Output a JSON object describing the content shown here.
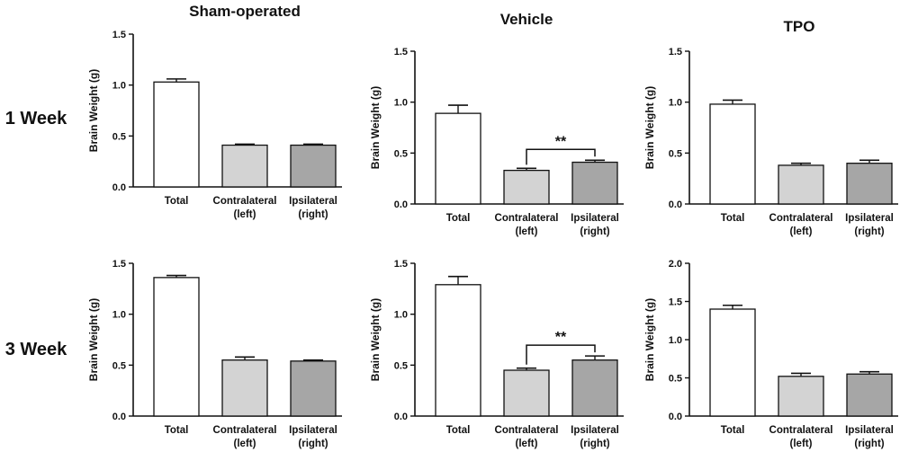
{
  "column_titles": [
    "Sham-operated",
    "Vehicle",
    "TPO"
  ],
  "row_titles": [
    "1 Week",
    "3 Week"
  ],
  "colors": {
    "total": "#ffffff",
    "contralateral": "#d3d3d3",
    "ipsilateral": "#a6a6a6",
    "stroke": "#111111"
  },
  "chart_data": [
    {
      "type": "bar",
      "group": "Sham-operated",
      "timepoint": "1 Week",
      "ylabel": "Brain Weight (g)",
      "categories": [
        [
          "Total"
        ],
        [
          "Contralateral",
          "(left)"
        ],
        [
          "Ipsilateral",
          "(right)"
        ]
      ],
      "values": [
        1.03,
        0.41,
        0.41
      ],
      "errors": [
        0.03,
        0.01,
        0.01
      ],
      "ylim": [
        0,
        1.5
      ],
      "yticks": [
        "0.0",
        "0.5",
        "1.0",
        "1.5"
      ],
      "significance": null
    },
    {
      "type": "bar",
      "group": "Vehicle",
      "timepoint": "1 Week",
      "ylabel": "Brain Weight (g)",
      "categories": [
        [
          "Total"
        ],
        [
          "Contralateral",
          "(left)"
        ],
        [
          "Ipsilateral",
          "(right)"
        ]
      ],
      "values": [
        0.89,
        0.33,
        0.41
      ],
      "errors": [
        0.08,
        0.02,
        0.02
      ],
      "ylim": [
        0,
        1.5
      ],
      "yticks": [
        "0.0",
        "0.5",
        "1.0",
        "1.5"
      ],
      "significance": {
        "from": 1,
        "to": 2,
        "label": "**"
      }
    },
    {
      "type": "bar",
      "group": "TPO",
      "timepoint": "1 Week",
      "ylabel": "Brain Weight (g)",
      "categories": [
        [
          "Total"
        ],
        [
          "Contralateral",
          "(left)"
        ],
        [
          "Ipsilateral",
          "(right)"
        ]
      ],
      "values": [
        0.98,
        0.38,
        0.4
      ],
      "errors": [
        0.04,
        0.02,
        0.03
      ],
      "ylim": [
        0,
        1.5
      ],
      "yticks": [
        "0.0",
        "0.5",
        "1.0",
        "1.5"
      ],
      "significance": null
    },
    {
      "type": "bar",
      "group": "Sham-operated",
      "timepoint": "3 Week",
      "ylabel": "Brain Weight (g)",
      "categories": [
        [
          "Total"
        ],
        [
          "Contralateral",
          "(left)"
        ],
        [
          "Ipsilateral",
          "(right)"
        ]
      ],
      "values": [
        1.36,
        0.55,
        0.54
      ],
      "errors": [
        0.02,
        0.03,
        0.01
      ],
      "ylim": [
        0,
        1.5
      ],
      "yticks": [
        "0.0",
        "0.5",
        "1.0",
        "1.5"
      ],
      "significance": null
    },
    {
      "type": "bar",
      "group": "Vehicle",
      "timepoint": "3 Week",
      "ylabel": "Brain Weight (g)",
      "categories": [
        [
          "Total"
        ],
        [
          "Contralateral",
          "(left)"
        ],
        [
          "Ipsilateral",
          "(right)"
        ]
      ],
      "values": [
        1.29,
        0.45,
        0.55
      ],
      "errors": [
        0.08,
        0.02,
        0.04
      ],
      "ylim": [
        0,
        1.5
      ],
      "yticks": [
        "0.0",
        "0.5",
        "1.0",
        "1.5"
      ],
      "significance": {
        "from": 1,
        "to": 2,
        "label": "**"
      }
    },
    {
      "type": "bar",
      "group": "TPO",
      "timepoint": "3 Week",
      "ylabel": "Brain Weight (g)",
      "categories": [
        [
          "Total"
        ],
        [
          "Contralateral",
          "(left)"
        ],
        [
          "Ipsilateral",
          "(right)"
        ]
      ],
      "values": [
        1.4,
        0.52,
        0.55
      ],
      "errors": [
        0.05,
        0.04,
        0.03
      ],
      "ylim": [
        0,
        2.0
      ],
      "yticks": [
        "0.0",
        "0.5",
        "1.0",
        "1.5",
        "2.0"
      ],
      "significance": null
    }
  ]
}
